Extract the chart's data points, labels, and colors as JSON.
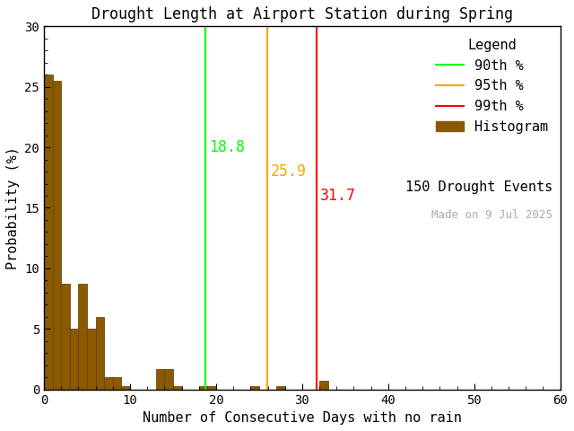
{
  "title": "Drought Length at Airport Station during Spring",
  "xlabel": "Number of Consecutive Days with no rain",
  "ylabel": "Probability (%)",
  "xlim": [
    0,
    60
  ],
  "ylim": [
    0,
    30
  ],
  "xticks": [
    0,
    10,
    20,
    30,
    40,
    50,
    60
  ],
  "yticks": [
    0,
    5,
    10,
    15,
    20,
    25,
    30
  ],
  "bar_color": "#8B5A00",
  "bar_edgecolor": "#5C3A00",
  "background_color": "#ffffff",
  "percentile_90": 18.8,
  "percentile_95": 25.9,
  "percentile_99": 31.7,
  "pct90_color": "#00FF00",
  "pct95_color": "#FFA500",
  "pct99_color": "#FF0000",
  "drought_events": 150,
  "date_label": "Made on 9 Jul 2025",
  "date_color": "#aaaaaa",
  "bin_width": 1,
  "bin_values": [
    26.0,
    25.5,
    8.7,
    5.0,
    8.7,
    5.0,
    6.0,
    1.0,
    1.0,
    0.3,
    0.0,
    0.0,
    0.0,
    1.7,
    1.7,
    0.3,
    0.0,
    0.0,
    0.3,
    0.3,
    0.0,
    0.0,
    0.0,
    0.0,
    0.3,
    0.0,
    0.0,
    0.3,
    0.0,
    0.0,
    0.0,
    0.0,
    0.7,
    0.0,
    0.0,
    0.0,
    0.0,
    0.0,
    0.0,
    0.0,
    0.0,
    0.0,
    0.0,
    0.0,
    0.0,
    0.0,
    0.0,
    0.0,
    0.0,
    0.0,
    0.0,
    0.0,
    0.0,
    0.0,
    0.0,
    0.0,
    0.0,
    0.0,
    0.0,
    0.0
  ],
  "title_fontsize": 12,
  "label_fontsize": 11,
  "tick_fontsize": 10,
  "legend_fontsize": 11,
  "pct_label_fontsize": 12
}
